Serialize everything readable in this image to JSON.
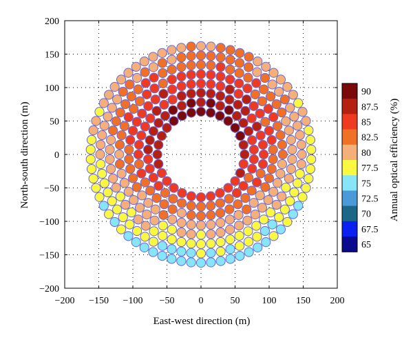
{
  "chart_data": {
    "type": "scatter",
    "title": "",
    "xlabel": "East-west direction (m)",
    "ylabel": "North-south direction (m)",
    "xlim": [
      -200,
      200
    ],
    "ylim": [
      -200,
      200
    ],
    "xticks": [
      -200,
      -150,
      -100,
      -50,
      0,
      50,
      100,
      150,
      200
    ],
    "yticks": [
      -200,
      -150,
      -100,
      -50,
      0,
      50,
      100,
      150,
      200
    ],
    "xtick_labels": [
      "−200",
      "−150",
      "−100",
      "−50",
      "0",
      "50",
      "100",
      "150",
      "200"
    ],
    "ytick_labels": [
      "−200",
      "−150",
      "−100",
      "−50",
      "0",
      "50",
      "100",
      "150",
      "200"
    ],
    "grid": true,
    "grid_style": "dotted",
    "marker": "circle",
    "marker_edge_color": "#6a6ad8",
    "colorbar": {
      "label": "Annual optical efficiency (%)",
      "ticks": [
        "90",
        "87.5",
        "85",
        "82.5",
        "80",
        "77.5",
        "75",
        "72.5",
        "70",
        "67.5",
        "65"
      ],
      "colors": [
        "#7a0a0a",
        "#b52010",
        "#ef3a22",
        "#f07026",
        "#f5b07a",
        "#fbf842",
        "#86e6f7",
        "#4a9ad8",
        "#1c6686",
        "#0a20f0",
        "#0a0a8e"
      ]
    },
    "field": {
      "description": "circular heliostat field",
      "inner_radius_m": 64,
      "outer_radius_m": 168,
      "ring_radii_m": [
        64,
        78,
        92,
        106,
        120,
        134,
        148,
        162
      ],
      "efficiency_levels": [
        "90",
        "87.5",
        "85",
        "82.5",
        "80",
        "77.5",
        "75",
        "72.5"
      ]
    }
  }
}
